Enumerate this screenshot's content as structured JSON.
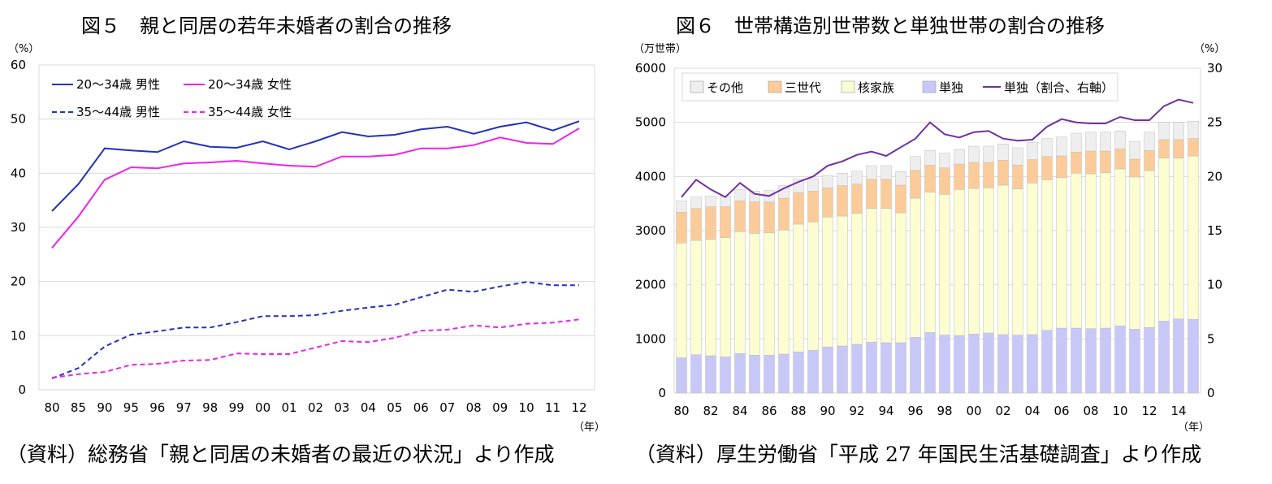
{
  "left": {
    "title": "図５　親と同居の若年未婚者の割合の推移",
    "source": "（資料）総務省「親と同居の未婚者の最近の状況」より作成"
  },
  "right": {
    "title": "図６　世帯構造別世帯数と単独世帯の割合の推移",
    "source": "（資料）厚生労働省「平成 27 年国民生活基礎調査」より作成"
  },
  "chart_data": [
    {
      "type": "line",
      "title": "図５　親と同居の若年未婚者の割合の推移",
      "yunit": "（%）",
      "xunit": "（年）",
      "ylim": [
        0,
        60
      ],
      "yticks": [
        0,
        10,
        20,
        30,
        40,
        50,
        60
      ],
      "grid": true,
      "legend_position": "top-left",
      "categories": [
        "80",
        "85",
        "90",
        "95",
        "96",
        "97",
        "98",
        "99",
        "00",
        "01",
        "02",
        "03",
        "04",
        "05",
        "06",
        "07",
        "08",
        "09",
        "10",
        "11",
        "12"
      ],
      "series": [
        {
          "name": "20～34歳 男性",
          "color": "#2233bb",
          "dash": "solid",
          "values": [
            33.0,
            38.0,
            44.6,
            44.2,
            43.9,
            45.9,
            44.9,
            44.7,
            45.9,
            44.4,
            45.9,
            47.6,
            46.8,
            47.1,
            48.1,
            48.6,
            47.3,
            48.6,
            49.4,
            47.9,
            49.6
          ]
        },
        {
          "name": "20～34歳 女性",
          "color": "#ee22ee",
          "dash": "solid",
          "values": [
            26.2,
            32.0,
            38.8,
            41.1,
            40.9,
            41.8,
            42.0,
            42.3,
            41.8,
            41.4,
            41.2,
            43.1,
            43.1,
            43.4,
            44.6,
            44.6,
            45.2,
            46.6,
            45.6,
            45.4,
            48.3
          ]
        },
        {
          "name": "35～44歳 男性",
          "color": "#2233bb",
          "dash": "dashed",
          "values": [
            2.1,
            4.0,
            8.0,
            10.2,
            10.8,
            11.5,
            11.5,
            12.5,
            13.6,
            13.6,
            13.8,
            14.6,
            15.2,
            15.7,
            17.1,
            18.5,
            18.1,
            19.1,
            19.9,
            19.3,
            19.3
          ]
        },
        {
          "name": "35～44歳 女性",
          "color": "#ee22ee",
          "dash": "dashed",
          "values": [
            2.2,
            2.9,
            3.3,
            4.6,
            4.8,
            5.4,
            5.5,
            6.7,
            6.6,
            6.6,
            7.8,
            9.0,
            8.8,
            9.6,
            10.9,
            11.1,
            11.9,
            11.5,
            12.2,
            12.4,
            13.0
          ]
        }
      ]
    },
    {
      "type": "bar",
      "stacked": true,
      "title": "図６　世帯構造別世帯数と単独世帯の割合の推移",
      "yunit_left": "（万世帯）",
      "yunit_right": "（%）",
      "xunit": "（年）",
      "ylim": [
        0,
        6000
      ],
      "yticks": [
        0,
        1000,
        2000,
        3000,
        4000,
        5000,
        6000
      ],
      "y2lim": [
        0,
        30
      ],
      "y2ticks": [
        0,
        5,
        10,
        15,
        20,
        25,
        30
      ],
      "grid": true,
      "legend_position": "top-left",
      "years": [
        80,
        81,
        82,
        83,
        84,
        85,
        86,
        87,
        88,
        89,
        90,
        91,
        92,
        93,
        94,
        95,
        96,
        97,
        98,
        99,
        0,
        1,
        2,
        3,
        4,
        5,
        6,
        7,
        8,
        9,
        10,
        11,
        12,
        13,
        14,
        15
      ],
      "xtick_labels": [
        "80",
        "",
        "82",
        "",
        "84",
        "",
        "86",
        "",
        "88",
        "",
        "90",
        "",
        "92",
        "",
        "94",
        "",
        "96",
        "",
        "98",
        "",
        "00",
        "",
        "02",
        "",
        "04",
        "",
        "06",
        "",
        "08",
        "",
        "10",
        "",
        "12",
        "",
        "14",
        ""
      ],
      "series": [
        {
          "name": "単独",
          "color": "#c8c8f8",
          "role": "bar",
          "values": [
            650,
            710,
            690,
            670,
            730,
            700,
            700,
            720,
            760,
            790,
            850,
            870,
            900,
            940,
            930,
            930,
            1030,
            1120,
            1070,
            1060,
            1090,
            1110,
            1080,
            1070,
            1080,
            1160,
            1200,
            1200,
            1190,
            1200,
            1240,
            1180,
            1210,
            1330,
            1370,
            1360
          ]
        },
        {
          "name": "核家族",
          "color": "#fdfdd2",
          "role": "bar",
          "values": [
            2120,
            2110,
            2150,
            2200,
            2250,
            2250,
            2260,
            2290,
            2360,
            2370,
            2400,
            2400,
            2420,
            2470,
            2480,
            2400,
            2570,
            2590,
            2600,
            2700,
            2690,
            2680,
            2760,
            2700,
            2800,
            2780,
            2780,
            2860,
            2860,
            2870,
            2900,
            2810,
            2900,
            3010,
            2970,
            3020
          ]
        },
        {
          "name": "三世代",
          "color": "#fbcc99",
          "role": "bar",
          "values": [
            570,
            590,
            600,
            570,
            570,
            580,
            570,
            590,
            580,
            570,
            540,
            560,
            540,
            540,
            540,
            510,
            510,
            500,
            490,
            470,
            480,
            470,
            460,
            440,
            430,
            430,
            400,
            390,
            420,
            400,
            370,
            330,
            370,
            340,
            340,
            320
          ]
        },
        {
          "name": "その他",
          "color": "#eeeeee",
          "role": "bar",
          "values": [
            210,
            210,
            200,
            200,
            210,
            200,
            210,
            230,
            250,
            230,
            230,
            230,
            240,
            250,
            250,
            250,
            260,
            270,
            270,
            270,
            300,
            300,
            300,
            320,
            320,
            330,
            350,
            350,
            350,
            350,
            330,
            330,
            340,
            320,
            320,
            320
          ]
        },
        {
          "name": "単独（割合、右軸）",
          "color": "#7030a0",
          "role": "line",
          "axis": "right",
          "values": [
            18.1,
            19.7,
            18.8,
            18.1,
            19.4,
            18.4,
            18.2,
            18.9,
            19.5,
            20.0,
            21.0,
            21.4,
            22.0,
            22.3,
            21.9,
            22.7,
            23.5,
            25.0,
            23.9,
            23.6,
            24.1,
            24.2,
            23.5,
            23.3,
            23.4,
            24.6,
            25.3,
            25.0,
            24.9,
            24.9,
            25.5,
            25.2,
            25.2,
            26.5,
            27.1,
            26.8
          ]
        }
      ]
    }
  ]
}
